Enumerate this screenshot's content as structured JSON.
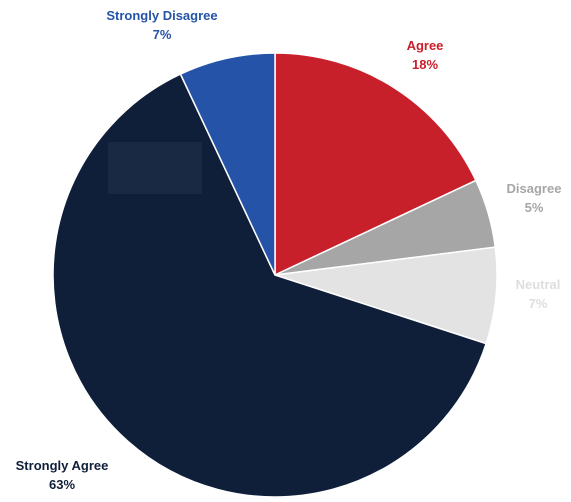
{
  "chart_data": {
    "type": "pie",
    "title": "",
    "slices": [
      {
        "name": "Agree",
        "value": 18,
        "label": "Agree",
        "pct": "18%",
        "color": "#c8202a",
        "text_color": "#c8202a"
      },
      {
        "name": "Disagree",
        "value": 5,
        "label": "Disagree",
        "pct": "5%",
        "color": "#a6a6a6",
        "text_color": "#a6a6a6"
      },
      {
        "name": "Neutral",
        "value": 7,
        "label": "Neutral",
        "pct": "7%",
        "color": "#e3e3e3",
        "text_color": "#dedede"
      },
      {
        "name": "Strongly Agree",
        "value": 63,
        "label": "Strongly Agree",
        "pct": "63%",
        "color": "#0f1f3a",
        "text_color": "#0f1f3a"
      },
      {
        "name": "Strongly Disagree",
        "value": 7,
        "label": "Strongly Disagree",
        "pct": "7%",
        "color": "#2553a8",
        "text_color": "#2553a8"
      }
    ],
    "start_angle_deg": 0,
    "direction": "clockwise",
    "legend": "none"
  }
}
